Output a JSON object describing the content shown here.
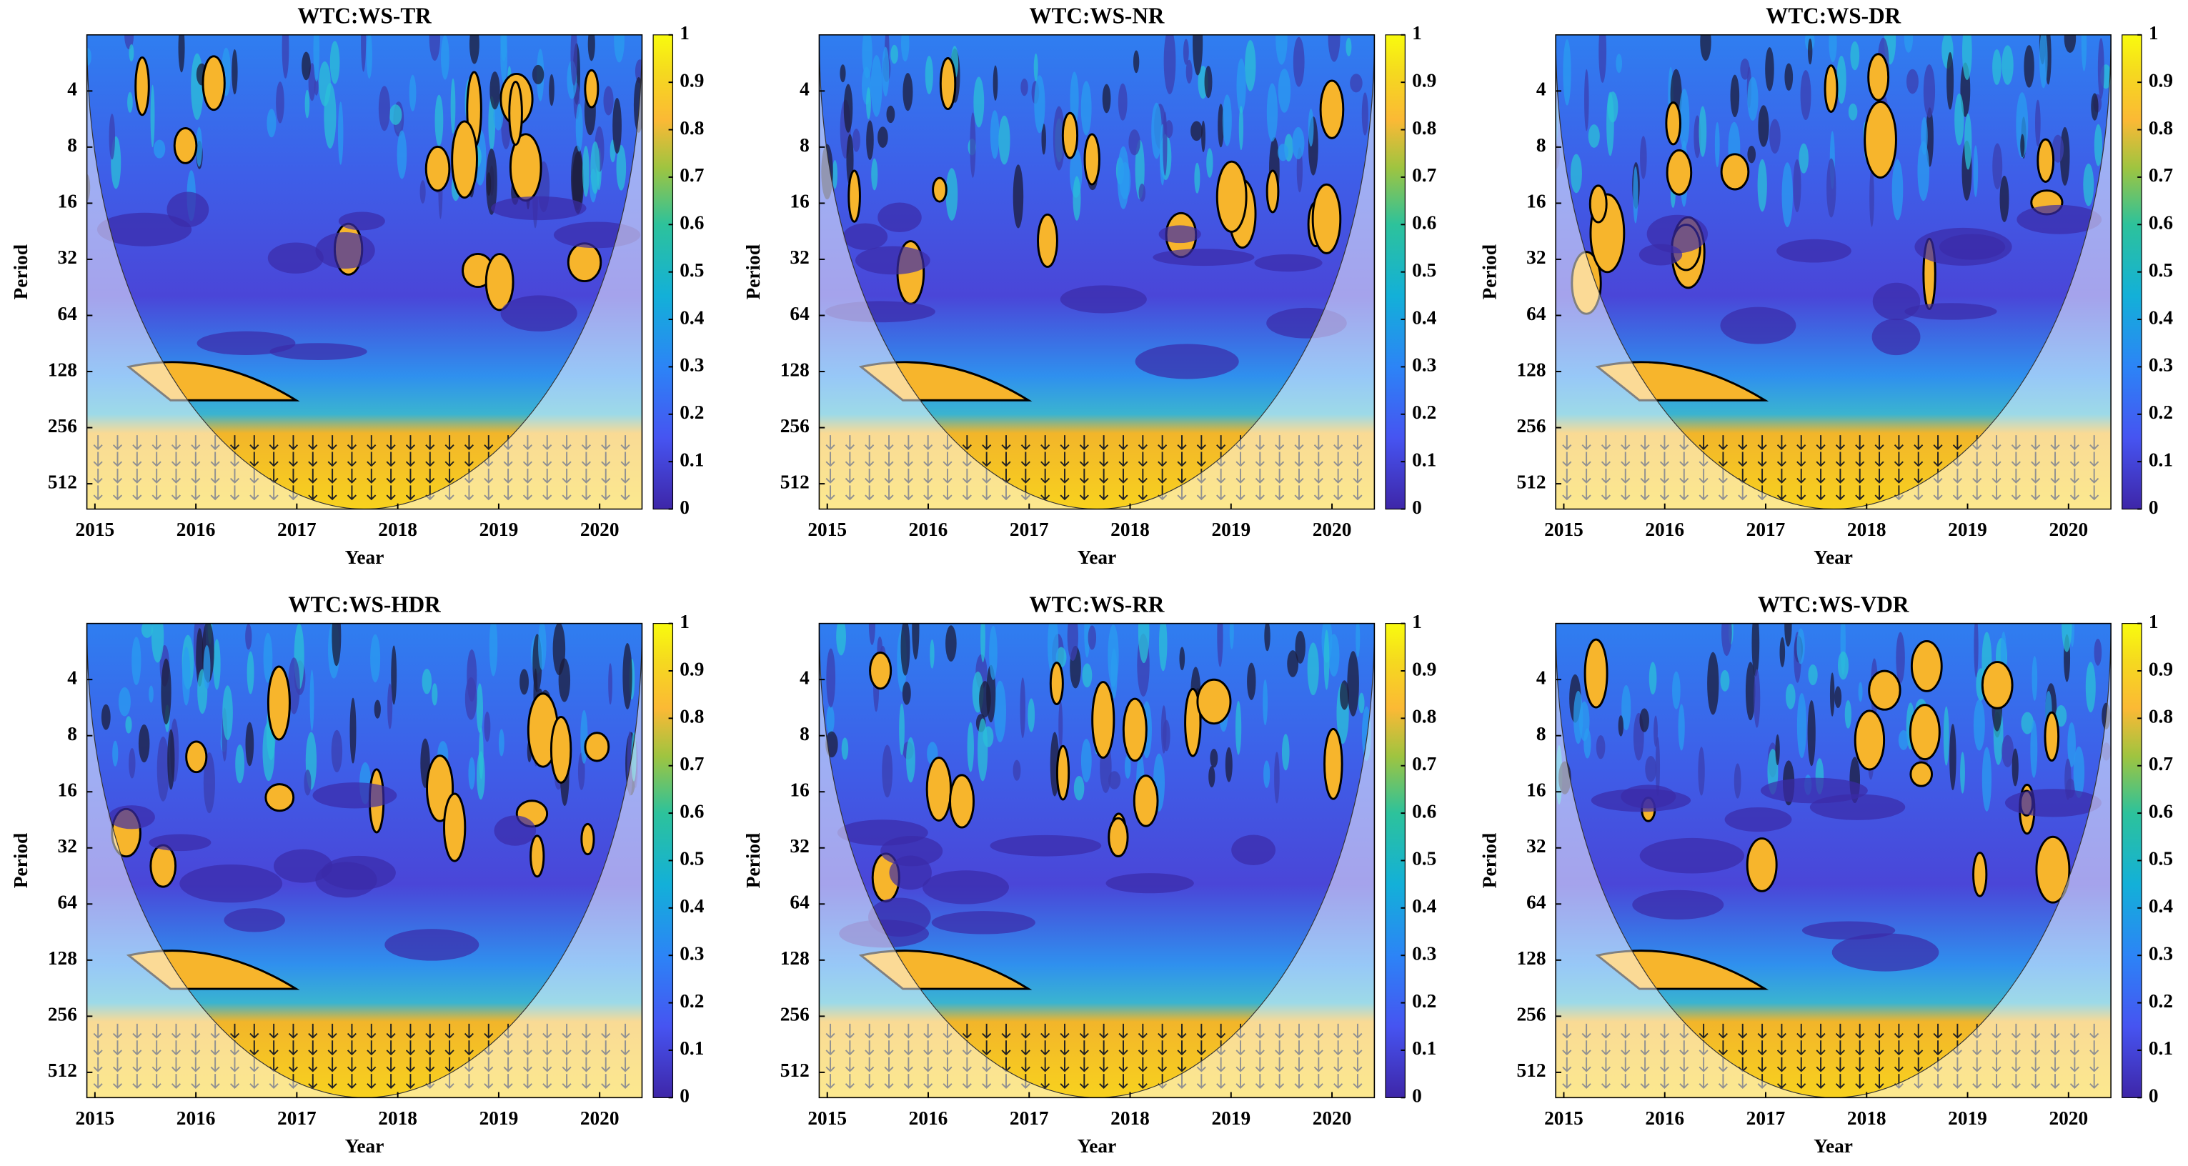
{
  "chart_data": [
    {
      "type": "heatmap",
      "title": "WTC:WS-TR",
      "xlabel": "Year",
      "ylabel": "Period",
      "xlim": [
        2014.92,
        2020.42
      ],
      "xticks": [
        2015,
        2016,
        2017,
        2018,
        2019,
        2020
      ],
      "ylim": [
        2,
        700
      ],
      "yticks": [
        4,
        8,
        16,
        32,
        64,
        128,
        256,
        512
      ],
      "yscale": "log",
      "yreversed": true,
      "clim": [
        0,
        1
      ],
      "cticks": [
        0,
        0.1,
        0.2,
        0.3,
        0.4,
        0.5,
        0.6,
        0.7,
        0.8,
        0.9,
        1
      ]
    },
    {
      "type": "heatmap",
      "title": "WTC:WS-NR",
      "xlabel": "Year",
      "ylabel": "Period",
      "xlim": [
        2014.92,
        2020.42
      ],
      "xticks": [
        2015,
        2016,
        2017,
        2018,
        2019,
        2020
      ],
      "ylim": [
        2,
        700
      ],
      "yticks": [
        4,
        8,
        16,
        32,
        64,
        128,
        256,
        512
      ],
      "yscale": "log",
      "yreversed": true,
      "clim": [
        0,
        1
      ],
      "cticks": [
        0,
        0.1,
        0.2,
        0.3,
        0.4,
        0.5,
        0.6,
        0.7,
        0.8,
        0.9,
        1
      ]
    },
    {
      "type": "heatmap",
      "title": "WTC:WS-DR",
      "xlabel": "Year",
      "ylabel": "Period",
      "xlim": [
        2014.92,
        2020.42
      ],
      "xticks": [
        2015,
        2016,
        2017,
        2018,
        2019,
        2020
      ],
      "ylim": [
        2,
        700
      ],
      "yticks": [
        4,
        8,
        16,
        32,
        64,
        128,
        256,
        512
      ],
      "yscale": "log",
      "yreversed": true,
      "clim": [
        0,
        1
      ],
      "cticks": [
        0,
        0.1,
        0.2,
        0.3,
        0.4,
        0.5,
        0.6,
        0.7,
        0.8,
        0.9,
        1
      ]
    },
    {
      "type": "heatmap",
      "title": "WTC:WS-HDR",
      "xlabel": "Year",
      "ylabel": "Period",
      "xlim": [
        2014.92,
        2020.42
      ],
      "xticks": [
        2015,
        2016,
        2017,
        2018,
        2019,
        2020
      ],
      "ylim": [
        2,
        700
      ],
      "yticks": [
        4,
        8,
        16,
        32,
        64,
        128,
        256,
        512
      ],
      "yscale": "log",
      "yreversed": true,
      "clim": [
        0,
        1
      ],
      "cticks": [
        0,
        0.1,
        0.2,
        0.3,
        0.4,
        0.5,
        0.6,
        0.7,
        0.8,
        0.9,
        1
      ]
    },
    {
      "type": "heatmap",
      "title": "WTC:WS-RR",
      "xlabel": "Year",
      "ylabel": "Period",
      "xlim": [
        2014.92,
        2020.42
      ],
      "xticks": [
        2015,
        2016,
        2017,
        2018,
        2019,
        2020
      ],
      "ylim": [
        2,
        700
      ],
      "yticks": [
        4,
        8,
        16,
        32,
        64,
        128,
        256,
        512
      ],
      "yscale": "log",
      "yreversed": true,
      "clim": [
        0,
        1
      ],
      "cticks": [
        0,
        0.1,
        0.2,
        0.3,
        0.4,
        0.5,
        0.6,
        0.7,
        0.8,
        0.9,
        1
      ]
    },
    {
      "type": "heatmap",
      "title": "WTC:WS-VDR",
      "xlabel": "Year",
      "ylabel": "Period",
      "xlim": [
        2014.92,
        2020.42
      ],
      "xticks": [
        2015,
        2016,
        2017,
        2018,
        2019,
        2020
      ],
      "ylim": [
        2,
        700
      ],
      "yticks": [
        4,
        8,
        16,
        32,
        64,
        128,
        256,
        512
      ],
      "yscale": "log",
      "yreversed": true,
      "clim": [
        0,
        1
      ],
      "cticks": [
        0,
        0.1,
        0.2,
        0.3,
        0.4,
        0.5,
        0.6,
        0.7,
        0.8,
        0.9,
        1
      ]
    }
  ]
}
